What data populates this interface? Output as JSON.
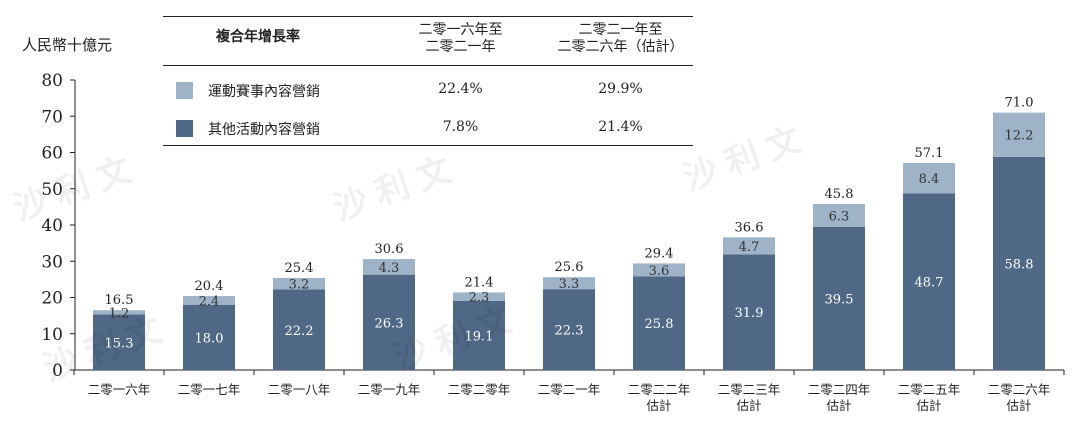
{
  "unit_label": "人民幣十億元",
  "colors": {
    "top": "#9eb3c8",
    "bottom": "#4f6885",
    "axis": "#222222"
  },
  "watermark": "沙利文",
  "legend": {
    "title": "複合年增長率",
    "periods": [
      "二零一六年至\n二零二一年",
      "二零二一年至\n二零二六年（估計）"
    ],
    "rows": [
      {
        "name": "運動賽事內容營銷",
        "values": [
          "22.4%",
          "29.9%"
        ],
        "color": "#9eb3c8"
      },
      {
        "name": "其他活動內容營銷",
        "values": [
          "7.8%",
          "21.4%"
        ],
        "color": "#4f6885"
      }
    ]
  },
  "chart_data": {
    "type": "bar",
    "stacked": true,
    "categories": [
      "二零一六年",
      "二零一七年",
      "二零一八年",
      "二零一九年",
      "二零二零年",
      "二零二一年",
      "二零二二年\n估計",
      "二零二三年\n估計",
      "二零二四年\n估計",
      "二零二五年\n估計",
      "二零二六年\n估計"
    ],
    "series": [
      {
        "name": "其他活動內容營銷",
        "values": [
          15.3,
          18.0,
          22.2,
          26.3,
          19.1,
          22.3,
          25.8,
          31.9,
          39.5,
          48.7,
          58.8
        ]
      },
      {
        "name": "運動賽事內容營銷",
        "values": [
          1.2,
          2.4,
          3.2,
          4.3,
          2.3,
          3.3,
          3.6,
          4.7,
          6.3,
          8.4,
          12.2
        ]
      }
    ],
    "totals": [
      16.5,
      20.4,
      25.4,
      30.6,
      21.4,
      25.6,
      29.4,
      36.6,
      45.8,
      57.1,
      71.0
    ],
    "ylim": [
      0,
      80
    ],
    "yticks": [
      0,
      10,
      20,
      30,
      40,
      50,
      60,
      70,
      80
    ],
    "ylabel": "人民幣十億元",
    "grid": false,
    "legend": "top-left"
  }
}
